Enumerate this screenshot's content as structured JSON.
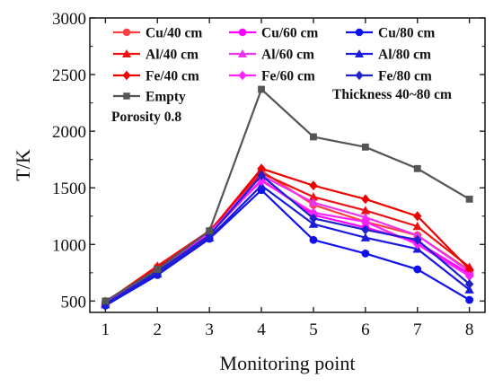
{
  "chart_data": {
    "type": "line",
    "xlabel": "Monitoring point",
    "ylabel": "T/K",
    "x": [
      1,
      2,
      3,
      4,
      5,
      6,
      7,
      8
    ],
    "xlim": [
      0.7,
      8.3
    ],
    "ylim": [
      400,
      3000
    ],
    "yticks": [
      500,
      1000,
      1500,
      2000,
      2500,
      3000
    ],
    "grid": false,
    "legend_position": "top",
    "annotations": [
      {
        "id": "porosity",
        "text": "Porosity 0.8"
      },
      {
        "id": "thickness",
        "text": "Thickness 40~80 cm"
      }
    ],
    "series": [
      {
        "name": "Cu/40 cm",
        "color": "#ff4040",
        "marker": "circle",
        "values": [
          480,
          800,
          1100,
          1650,
          1350,
          1200,
          1080,
          770
        ]
      },
      {
        "name": "Cu/60 cm",
        "color": "#ff00ff",
        "marker": "circle",
        "values": [
          480,
          780,
          1090,
          1570,
          1260,
          1150,
          1020,
          740
        ]
      },
      {
        "name": "Cu/80 cm",
        "color": "#1010ee",
        "marker": "circle",
        "values": [
          460,
          730,
          1050,
          1480,
          1040,
          920,
          780,
          510
        ]
      },
      {
        "name": "Al/40 cm",
        "color": "#ee1111",
        "marker": "triangle",
        "values": [
          490,
          810,
          1120,
          1630,
          1420,
          1300,
          1160,
          800
        ]
      },
      {
        "name": "Al/60 cm",
        "color": "#ee33ee",
        "marker": "triangle",
        "values": [
          485,
          790,
          1110,
          1610,
          1370,
          1240,
          1080,
          760
        ]
      },
      {
        "name": "Al/80 cm",
        "color": "#1a1add",
        "marker": "triangle",
        "values": [
          470,
          740,
          1060,
          1520,
          1180,
          1060,
          960,
          600
        ]
      },
      {
        "name": "Fe/40 cm",
        "color": "#ee0000",
        "marker": "diamond",
        "values": [
          495,
          790,
          1110,
          1670,
          1520,
          1400,
          1250,
          780
        ]
      },
      {
        "name": "Fe/60 cm",
        "color": "#ff22ff",
        "marker": "diamond",
        "values": [
          490,
          770,
          1110,
          1560,
          1280,
          1200,
          1000,
          720
        ]
      },
      {
        "name": "Fe/80 cm",
        "color": "#2020cc",
        "marker": "diamond",
        "values": [
          475,
          760,
          1080,
          1610,
          1230,
          1130,
          1040,
          650
        ]
      },
      {
        "name": "Empty",
        "color": "#555555",
        "marker": "square",
        "values": [
          500,
          780,
          1120,
          2370,
          1950,
          1860,
          1670,
          1400
        ]
      }
    ]
  }
}
